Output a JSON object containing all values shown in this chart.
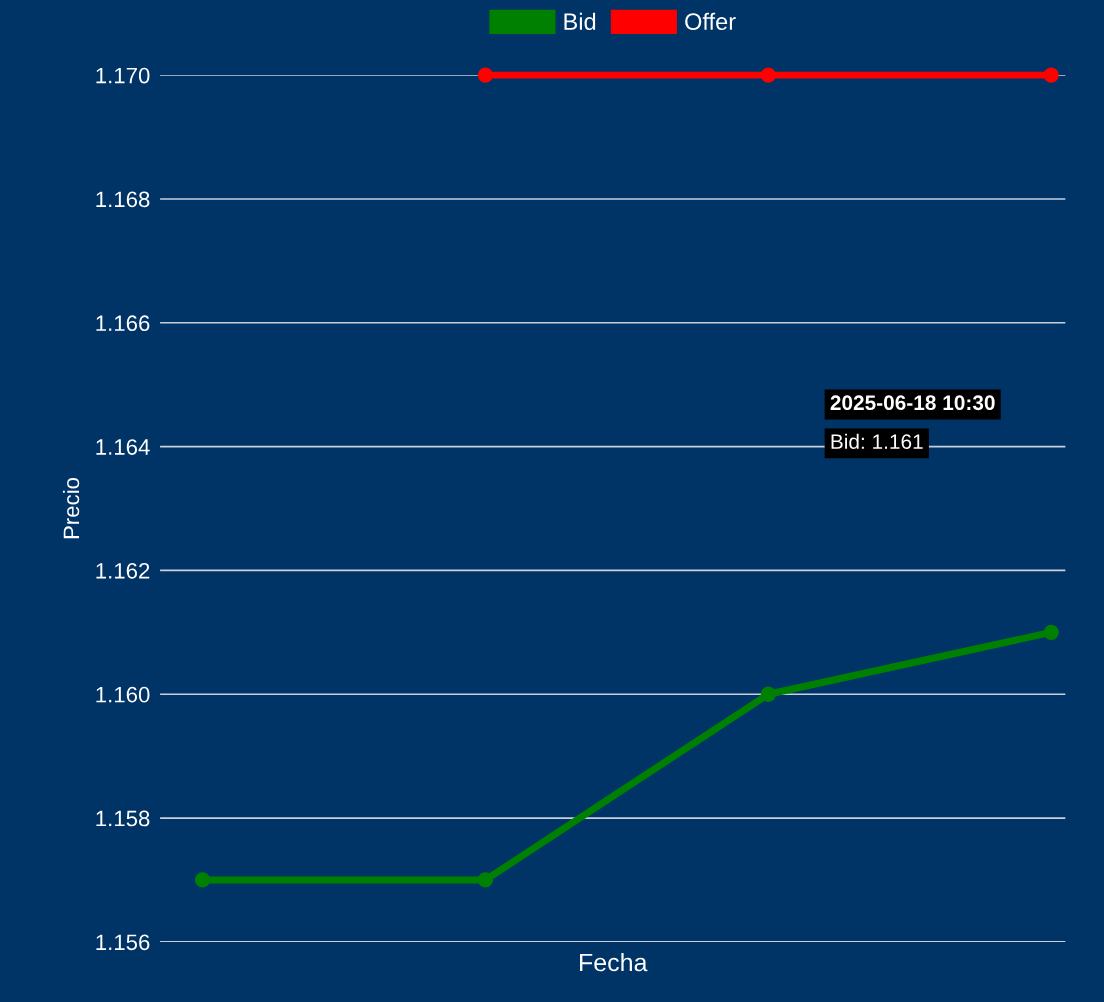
{
  "chart_data": {
    "type": "line",
    "xlabel": "Fecha",
    "ylabel": "Precio",
    "categories": [
      null,
      null,
      null,
      null
    ],
    "series": [
      {
        "name": "Bid",
        "color": "#008000",
        "values": [
          1.157,
          1.157,
          1.16,
          1.161
        ]
      },
      {
        "name": "Offer",
        "color": "#ff0000",
        "values": [
          null,
          1.17,
          1.17,
          1.17
        ]
      }
    ],
    "ylim": [
      1.156,
      1.17
    ],
    "yticks": [
      1.156,
      1.158,
      {
        "value": 1.16,
        "label": "1.160"
      },
      1.162,
      1.164,
      1.166,
      1.168,
      {
        "value": 1.17,
        "label": "1.170"
      }
    ],
    "grid": "y",
    "legend": "top",
    "marker": "circle",
    "line_style": "solid",
    "tick_labels": "y",
    "annotations": [
      "2025-06-18 10:30",
      "Bid: 1.161"
    ]
  }
}
